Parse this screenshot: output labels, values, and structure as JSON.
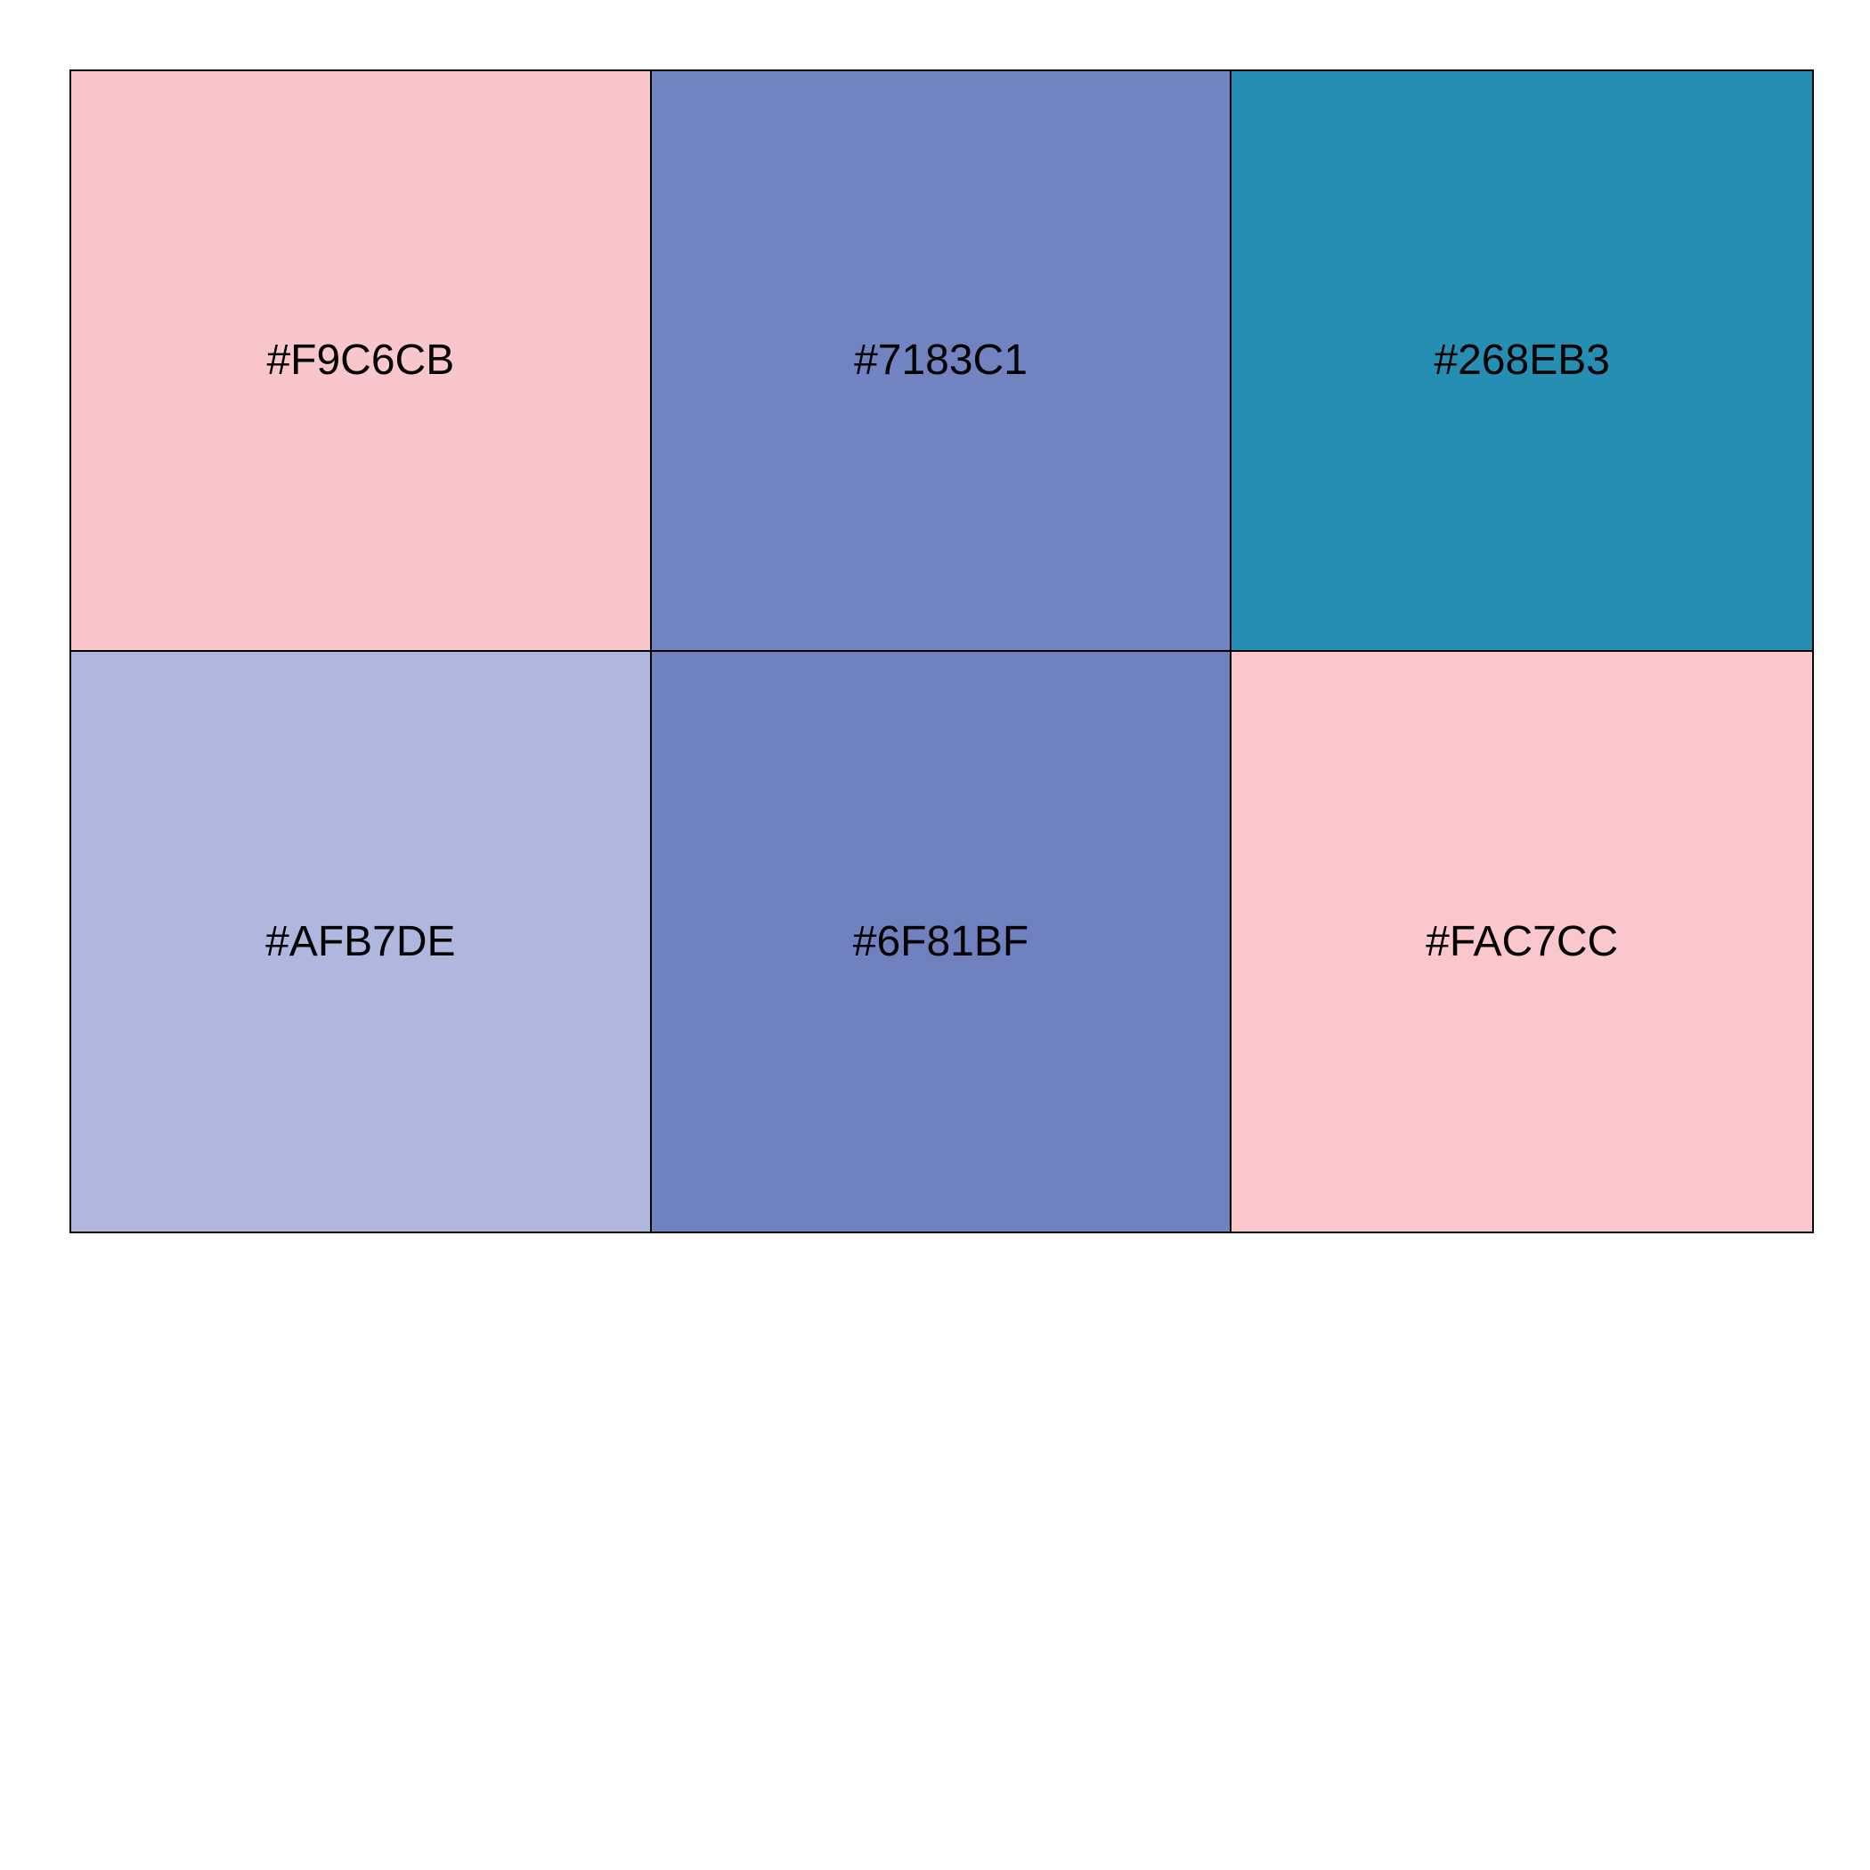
{
  "swatches": [
    {
      "label": "#F9C6CB",
      "color": "#F9C6CB"
    },
    {
      "label": "#7183C1",
      "color": "#7183C1"
    },
    {
      "label": "#268EB3",
      "color": "#268EB3"
    },
    {
      "label": "#AFB7DE",
      "color": "#AFB7DE"
    },
    {
      "label": "#6F81BF",
      "color": "#6F81BF"
    },
    {
      "label": "#FAC7CC",
      "color": "#FAC7CC"
    }
  ]
}
